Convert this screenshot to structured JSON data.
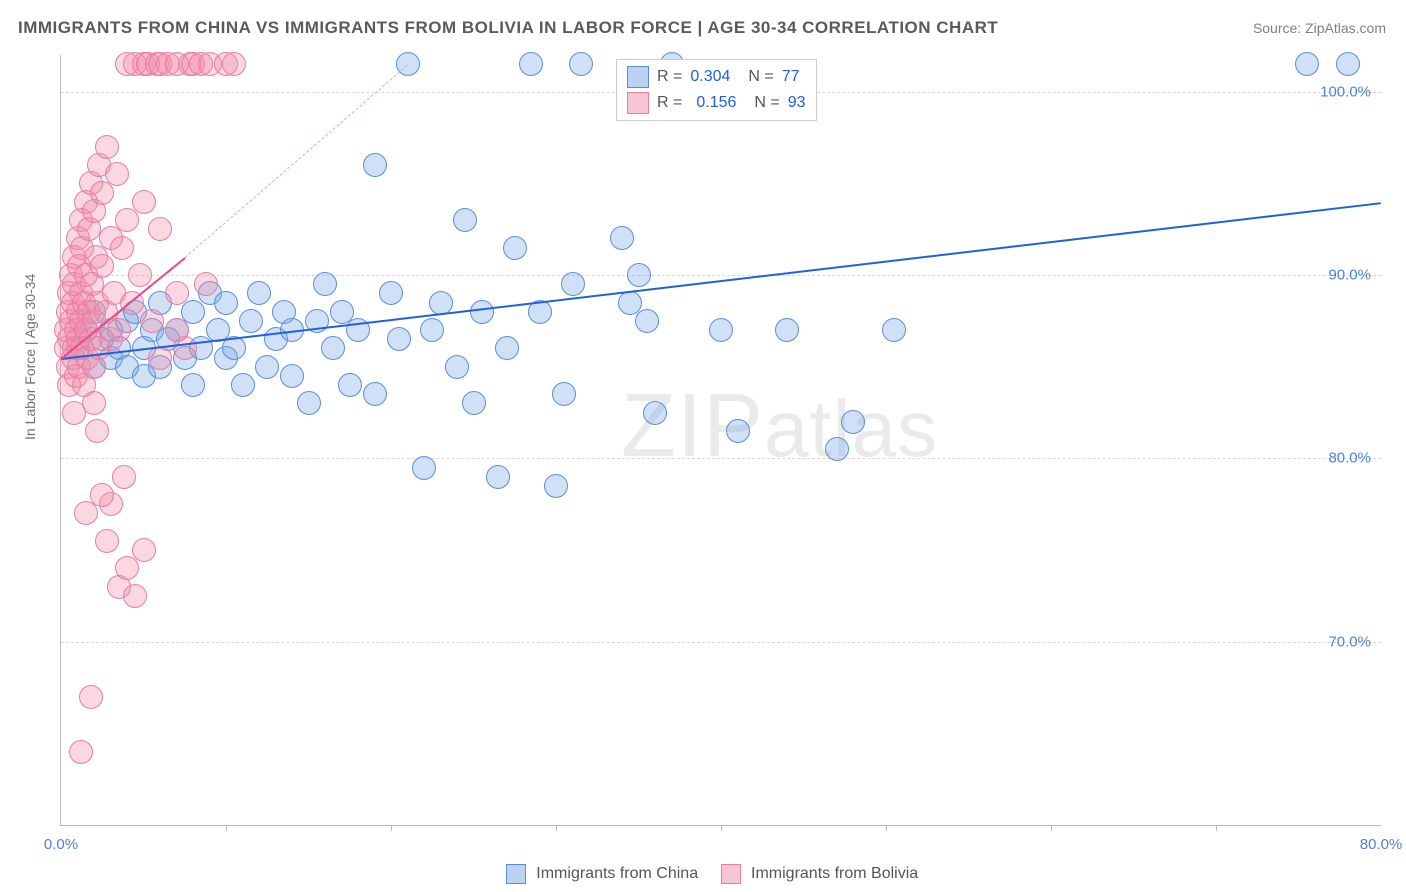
{
  "title": "IMMIGRANTS FROM CHINA VS IMMIGRANTS FROM BOLIVIA IN LABOR FORCE | AGE 30-34 CORRELATION CHART",
  "source": "Source: ZipAtlas.com",
  "ylabel": "In Labor Force | Age 30-34",
  "watermark": "ZIPatlas",
  "chart": {
    "type": "scatter",
    "background_color": "#ffffff",
    "grid_color": "#d8d8d8",
    "axis_color": "#bbbbbb",
    "title_fontsize": 17,
    "label_fontsize": 14,
    "tick_fontsize": 15,
    "tick_color": "#4a7fe8",
    "marker_radius": 11,
    "xlim": [
      0,
      80
    ],
    "ylim": [
      60,
      102
    ],
    "xticks": [
      {
        "v": 0,
        "label": "0.0%"
      },
      {
        "v": 80,
        "label": "80.0%"
      }
    ],
    "xtick_marks": [
      10,
      20,
      30,
      40,
      50,
      60,
      70
    ],
    "yticks": [
      {
        "v": 70,
        "label": "70.0%"
      },
      {
        "v": 80,
        "label": "80.0%"
      },
      {
        "v": 90,
        "label": "90.0%"
      },
      {
        "v": 100,
        "label": "100.0%"
      }
    ],
    "series": [
      {
        "name": "Immigrants from China",
        "color_fill": "rgba(120,165,230,0.35)",
        "color_stroke": "#5a8fd8",
        "trend_color": "#2060e0",
        "trend": {
          "x0": 0,
          "y0": 85.5,
          "x1": 80,
          "y1": 94.0
        },
        "R": "0.304",
        "N": "77",
        "points": [
          [
            1,
            86
          ],
          [
            1.5,
            87
          ],
          [
            2,
            88
          ],
          [
            2,
            85
          ],
          [
            2.5,
            86.5
          ],
          [
            3,
            87
          ],
          [
            3,
            85.5
          ],
          [
            3.5,
            86
          ],
          [
            4,
            87.5
          ],
          [
            4,
            85
          ],
          [
            4.5,
            88
          ],
          [
            5,
            86
          ],
          [
            5,
            84.5
          ],
          [
            5.5,
            87
          ],
          [
            6,
            88.5
          ],
          [
            6,
            85
          ],
          [
            6.5,
            86.5
          ],
          [
            7,
            87
          ],
          [
            7.5,
            85.5
          ],
          [
            8,
            88
          ],
          [
            8,
            84
          ],
          [
            8.5,
            86
          ],
          [
            9,
            89
          ],
          [
            9.5,
            87
          ],
          [
            10,
            85.5
          ],
          [
            10,
            88.5
          ],
          [
            10.5,
            86
          ],
          [
            11,
            84
          ],
          [
            11.5,
            87.5
          ],
          [
            12,
            89
          ],
          [
            12.5,
            85
          ],
          [
            13,
            86.5
          ],
          [
            13.5,
            88
          ],
          [
            14,
            84.5
          ],
          [
            14,
            87
          ],
          [
            15,
            83
          ],
          [
            15.5,
            87.5
          ],
          [
            16,
            89.5
          ],
          [
            16.5,
            86
          ],
          [
            17,
            88
          ],
          [
            17.5,
            84
          ],
          [
            18,
            87
          ],
          [
            19,
            96
          ],
          [
            19,
            83.5
          ],
          [
            20,
            89
          ],
          [
            20.5,
            86.5
          ],
          [
            21,
            101.5
          ],
          [
            22,
            79.5
          ],
          [
            22.5,
            87
          ],
          [
            23,
            88.5
          ],
          [
            24,
            85
          ],
          [
            24.5,
            93
          ],
          [
            25,
            83
          ],
          [
            25.5,
            88
          ],
          [
            26.5,
            79
          ],
          [
            27,
            86
          ],
          [
            27.5,
            91.5
          ],
          [
            28.5,
            101.5
          ],
          [
            29,
            88
          ],
          [
            30,
            78.5
          ],
          [
            30.5,
            83.5
          ],
          [
            31,
            89.5
          ],
          [
            31.5,
            101.5
          ],
          [
            34,
            92
          ],
          [
            34.5,
            88.5
          ],
          [
            35,
            90
          ],
          [
            35.5,
            87.5
          ],
          [
            36,
            82.5
          ],
          [
            37,
            101.5
          ],
          [
            40,
            87
          ],
          [
            41,
            81.5
          ],
          [
            44,
            87
          ],
          [
            47,
            80.5
          ],
          [
            48,
            82
          ],
          [
            50.5,
            87
          ],
          [
            75.5,
            101.5
          ],
          [
            78,
            101.5
          ]
        ]
      },
      {
        "name": "Immigrants from Bolivia",
        "color_fill": "rgba(240,140,170,0.35)",
        "color_stroke": "#e87da5",
        "trend_color": "#e84c88",
        "trend": {
          "x0": 0,
          "y0": 85.5,
          "x1": 7.5,
          "y1": 91.0
        },
        "trend_dash": {
          "x0": 7.5,
          "y0": 91.0,
          "x1": 21,
          "y1": 101.5
        },
        "R": "0.156",
        "N": "93",
        "points": [
          [
            0.3,
            86
          ],
          [
            0.3,
            87
          ],
          [
            0.4,
            88
          ],
          [
            0.4,
            85
          ],
          [
            0.5,
            89
          ],
          [
            0.5,
            86.5
          ],
          [
            0.5,
            84
          ],
          [
            0.6,
            90
          ],
          [
            0.6,
            87.5
          ],
          [
            0.7,
            88.5
          ],
          [
            0.7,
            85.5
          ],
          [
            0.8,
            91
          ],
          [
            0.8,
            86
          ],
          [
            0.8,
            89.5
          ],
          [
            0.9,
            87
          ],
          [
            0.9,
            84.5
          ],
          [
            1,
            92
          ],
          [
            1,
            88
          ],
          [
            1,
            86.5
          ],
          [
            1.1,
            90.5
          ],
          [
            1.1,
            85
          ],
          [
            1.2,
            93
          ],
          [
            1.2,
            87.5
          ],
          [
            1.2,
            89
          ],
          [
            1.3,
            86
          ],
          [
            1.3,
            91.5
          ],
          [
            1.4,
            88.5
          ],
          [
            1.4,
            84
          ],
          [
            1.5,
            94
          ],
          [
            1.5,
            87
          ],
          [
            1.5,
            90
          ],
          [
            1.6,
            85.5
          ],
          [
            1.7,
            92.5
          ],
          [
            1.7,
            88
          ],
          [
            1.8,
            86.5
          ],
          [
            1.8,
            95
          ],
          [
            1.9,
            89.5
          ],
          [
            2,
            87.5
          ],
          [
            2,
            93.5
          ],
          [
            2,
            85
          ],
          [
            2.1,
            91
          ],
          [
            2.2,
            88.5
          ],
          [
            2.3,
            96
          ],
          [
            2.3,
            86
          ],
          [
            2.5,
            90.5
          ],
          [
            2.5,
            94.5
          ],
          [
            2.7,
            88
          ],
          [
            2.8,
            97
          ],
          [
            3,
            92
          ],
          [
            3,
            86.5
          ],
          [
            3.2,
            89
          ],
          [
            3.4,
            95.5
          ],
          [
            3.5,
            87
          ],
          [
            3.7,
            91.5
          ],
          [
            4,
            101.5
          ],
          [
            4,
            93
          ],
          [
            4.3,
            88.5
          ],
          [
            4.5,
            101.5
          ],
          [
            4.8,
            90
          ],
          [
            5,
            101.5
          ],
          [
            5,
            94
          ],
          [
            5.3,
            101.5
          ],
          [
            5.5,
            87.5
          ],
          [
            5.8,
            101.5
          ],
          [
            6,
            92.5
          ],
          [
            6,
            101.5
          ],
          [
            6.5,
            101.5
          ],
          [
            7,
            89
          ],
          [
            7,
            101.5
          ],
          [
            7.5,
            86
          ],
          [
            7.8,
            101.5
          ],
          [
            8,
            101.5
          ],
          [
            8.5,
            101.5
          ],
          [
            8.8,
            89.5
          ],
          [
            9,
            101.5
          ],
          [
            10,
            101.5
          ],
          [
            10.5,
            101.5
          ],
          [
            2,
            83
          ],
          [
            2.2,
            81.5
          ],
          [
            1.5,
            77
          ],
          [
            2.8,
            75.5
          ],
          [
            3.5,
            73
          ],
          [
            4.5,
            72.5
          ],
          [
            1.8,
            67
          ],
          [
            1.2,
            64
          ],
          [
            0.8,
            82.5
          ],
          [
            3,
            77.5
          ],
          [
            4,
            74
          ],
          [
            5,
            75
          ],
          [
            2.5,
            78
          ],
          [
            3.8,
            79
          ],
          [
            6,
            85.5
          ],
          [
            7,
            87
          ]
        ]
      }
    ],
    "legend_bottom": [
      {
        "swatch": "blue",
        "label": "Immigrants from China"
      },
      {
        "swatch": "pink",
        "label": "Immigrants from Bolivia"
      }
    ]
  }
}
